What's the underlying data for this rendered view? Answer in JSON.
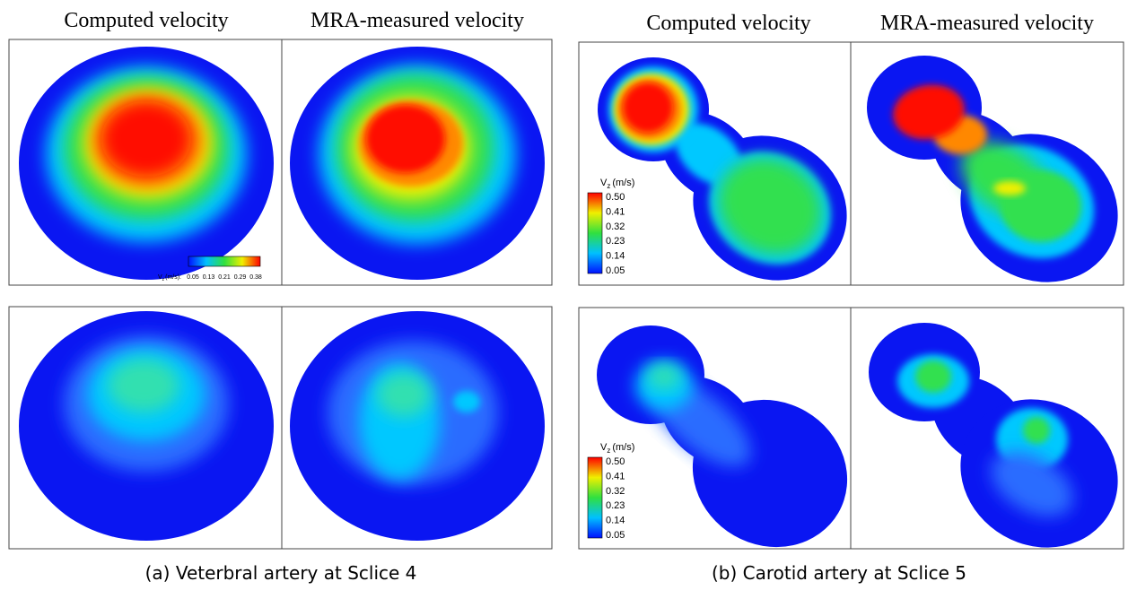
{
  "panels": [
    {
      "caption": "(a) Veterbral artery at Sclice 4",
      "column_titles": [
        "Computed velocity",
        "MRA-measured velocity"
      ],
      "colorbars": [
        {
          "symbol": "V",
          "subscript": "z",
          "unit": "(m/s):",
          "labels": [
            "0.05",
            "0.13",
            "0.21",
            "0.29",
            "0.38"
          ]
        }
      ]
    },
    {
      "caption": "(b) Carotid artery at Sclice 5",
      "column_titles": [
        "Computed velocity",
        "MRA-measured velocity"
      ],
      "colorbars": [
        {
          "symbol": "V",
          "subscript": "z",
          "unit": "(m/s)",
          "labels": [
            "0.50",
            "0.41",
            "0.32",
            "0.23",
            "0.14",
            "0.05"
          ]
        },
        {
          "symbol": "V",
          "subscript": "z",
          "unit": "(m/s)",
          "labels": [
            "0.50",
            "0.41",
            "0.32",
            "0.23",
            "0.14",
            "0.05"
          ]
        }
      ]
    }
  ]
}
